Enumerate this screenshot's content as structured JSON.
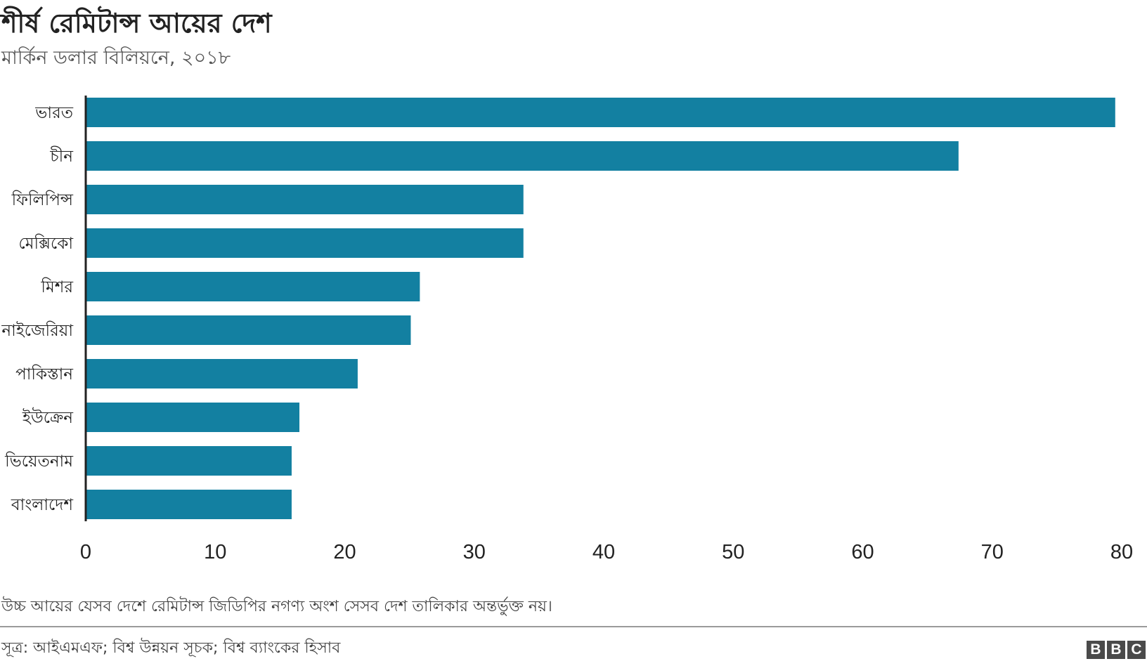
{
  "chart_data": {
    "type": "bar",
    "orientation": "horizontal",
    "title": "শীর্ষ রেমিটান্স আয়ের দেশ",
    "subtitle": "মার্কিন ডলার বিলিয়নে, ২০১৮",
    "categories": [
      "ভারত",
      "চীন",
      "ফিলিপিন্স",
      "মেক্সিকো",
      "মিশর",
      "নাইজেরিয়া",
      "পাকিস্তান",
      "ইউক্রেন",
      "ভিয়েতনাম",
      "বাংলাদেশ"
    ],
    "values": [
      79.5,
      67.4,
      33.8,
      33.8,
      25.8,
      25.1,
      21.0,
      16.5,
      15.9,
      15.9
    ],
    "xlim": [
      0,
      80
    ],
    "xticks": [
      0,
      10,
      20,
      30,
      40,
      50,
      60,
      70,
      80
    ],
    "xlabel": "",
    "ylabel": "",
    "grid": false,
    "bar_color": "#1380a1",
    "note": "উচ্চ আয়ের যেসব দেশে রেমিটান্স জিডিপির নগণ্য অংশ সেসব দেশ তালিকার অন্তর্ভুক্ত নয়।",
    "source": "সূত্র: আইএমএফ; বিশ্ব উন্নয়ন সূচক; বিশ্ব ব্যাংকের হিসাব"
  },
  "branding": {
    "logo_letters": [
      "B",
      "B",
      "C"
    ]
  }
}
